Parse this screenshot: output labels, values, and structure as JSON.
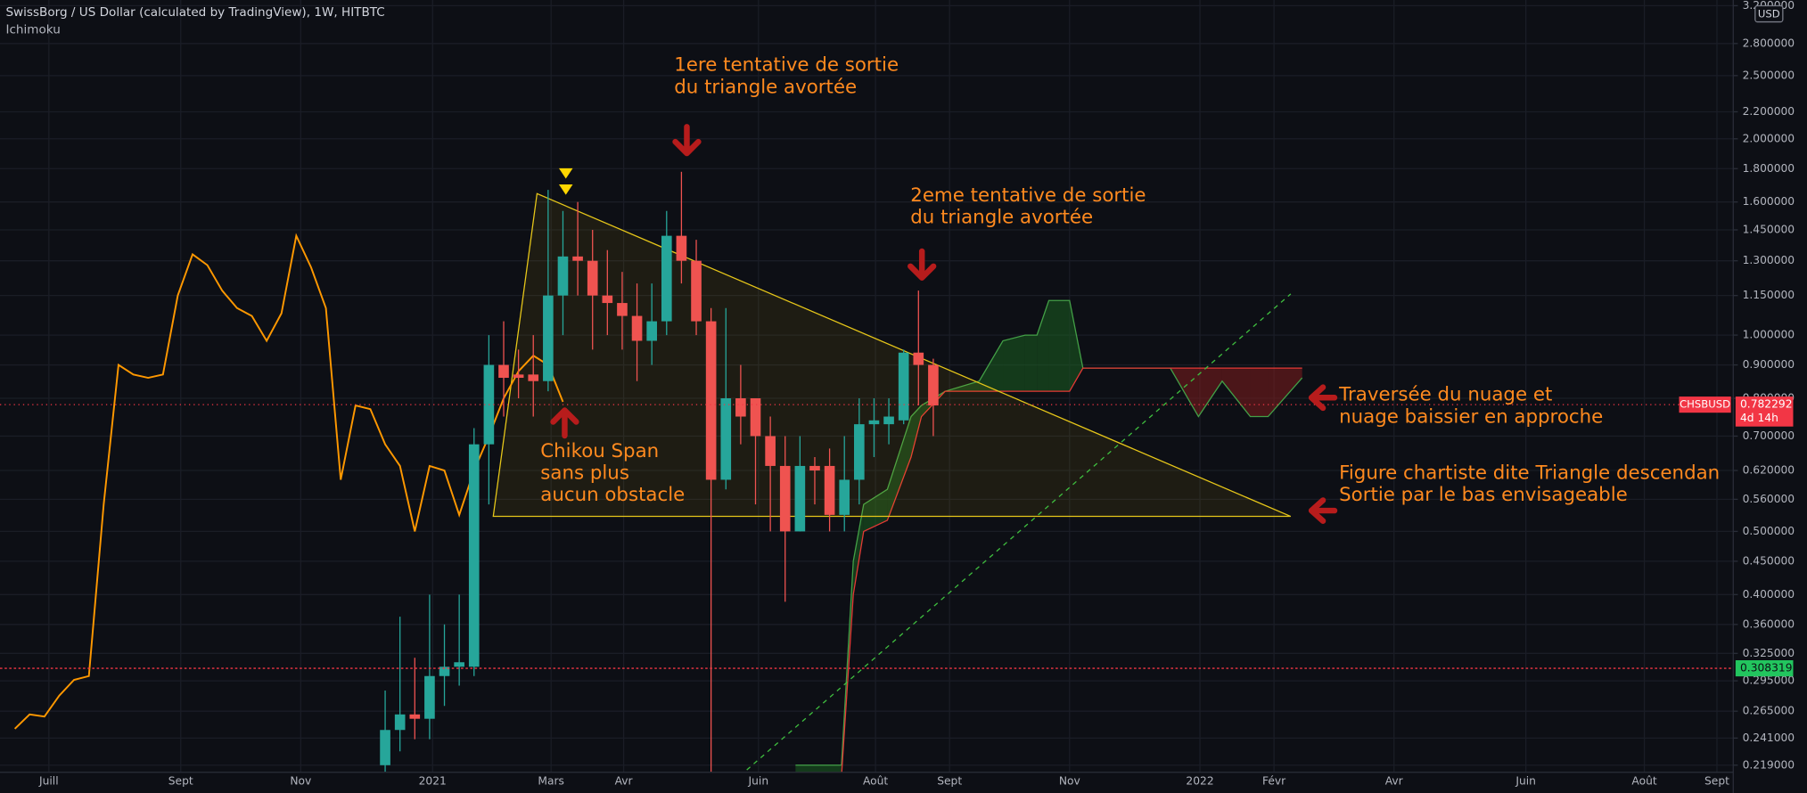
{
  "chart_data": {
    "type": "candlestick",
    "title": "SwissBorg / US Dollar (calculated by TradingView), 1W, HITBTC",
    "subtitle": "Ichimoku",
    "currency": "USD",
    "log_scale": true,
    "grid": true,
    "xlim": [
      0,
      117
    ],
    "xticks": [
      {
        "value": 3.3,
        "label": "Juill"
      },
      {
        "value": 12.2,
        "label": "Sept"
      },
      {
        "value": 20.3,
        "label": "Nov"
      },
      {
        "value": 29.2,
        "label": "2021"
      },
      {
        "value": 37.2,
        "label": "Mars"
      },
      {
        "value": 42.1,
        "label": "Avr"
      },
      {
        "value": 51.2,
        "label": "Juin"
      },
      {
        "value": 59.1,
        "label": "Août"
      },
      {
        "value": 64.1,
        "label": "Sept"
      },
      {
        "value": 72.2,
        "label": "Nov"
      },
      {
        "value": 81.0,
        "label": "2022"
      },
      {
        "value": 86.0,
        "label": "Févr"
      },
      {
        "value": 94.1,
        "label": "Avr"
      },
      {
        "value": 103.0,
        "label": "Juin"
      },
      {
        "value": 111.0,
        "label": "Août"
      },
      {
        "value": 115.9,
        "label": "Sept"
      }
    ],
    "ylim": [
      0.2136,
      3.265
    ],
    "yticks": [
      {
        "value": 0.219,
        "label": "0.219000"
      },
      {
        "value": 0.241,
        "label": "0.241000"
      },
      {
        "value": 0.265,
        "label": "0.265000"
      },
      {
        "value": 0.295,
        "label": "0.295000"
      },
      {
        "value": 0.325,
        "label": "0.325000"
      },
      {
        "value": 0.36,
        "label": "0.360000"
      },
      {
        "value": 0.4,
        "label": "0.400000"
      },
      {
        "value": 0.45,
        "label": "0.450000"
      },
      {
        "value": 0.5,
        "label": "0.500000"
      },
      {
        "value": 0.56,
        "label": "0.560000"
      },
      {
        "value": 0.62,
        "label": "0.620000"
      },
      {
        "value": 0.7,
        "label": "0.700000"
      },
      {
        "value": 0.8,
        "label": "0.800000"
      },
      {
        "value": 0.9,
        "label": "0.900000"
      },
      {
        "value": 1.0,
        "label": "1.000000"
      },
      {
        "value": 1.15,
        "label": "1.150000"
      },
      {
        "value": 1.3,
        "label": "1.300000"
      },
      {
        "value": 1.45,
        "label": "1.450000"
      },
      {
        "value": 1.6,
        "label": "1.600000"
      },
      {
        "value": 1.8,
        "label": "1.800000"
      },
      {
        "value": 2.0,
        "label": "2.000000"
      },
      {
        "value": 2.2,
        "label": "2.200000"
      },
      {
        "value": 2.5,
        "label": "2.500000"
      },
      {
        "value": 2.8,
        "label": "2.800000"
      },
      {
        "value": 3.2,
        "label": "3.200000"
      }
    ],
    "candles": {
      "up_color": "#26a69a",
      "down_color": "#ef5350",
      "x": [
        26,
        27,
        28,
        29,
        30,
        31,
        32,
        33,
        34,
        35,
        36,
        37,
        38,
        39,
        40,
        41,
        42,
        43,
        44,
        45,
        46,
        47,
        48,
        49,
        50,
        51,
        52,
        53,
        54,
        55,
        56,
        57,
        58,
        59,
        60,
        61,
        62,
        63
      ],
      "open": [
        0.219,
        0.248,
        0.262,
        0.258,
        0.3,
        0.31,
        0.31,
        0.68,
        0.9,
        0.87,
        0.87,
        0.85,
        1.15,
        1.32,
        1.3,
        1.15,
        1.12,
        1.07,
        0.98,
        1.05,
        1.42,
        1.3,
        1.05,
        0.6,
        0.8,
        0.8,
        0.7,
        0.63,
        0.5,
        0.63,
        0.63,
        0.53,
        0.6,
        0.73,
        0.73,
        0.74,
        0.94,
        0.9
      ],
      "high": [
        0.285,
        0.37,
        0.32,
        0.4,
        0.36,
        0.4,
        0.72,
        1.0,
        1.05,
        0.95,
        1.0,
        1.67,
        1.55,
        1.6,
        1.45,
        1.35,
        1.25,
        1.2,
        1.2,
        1.55,
        1.78,
        1.4,
        1.1,
        1.1,
        0.9,
        0.8,
        0.75,
        0.7,
        0.7,
        0.65,
        0.67,
        0.7,
        0.8,
        0.8,
        0.8,
        0.95,
        1.17,
        0.92
      ],
      "low": [
        0.214,
        0.23,
        0.24,
        0.24,
        0.27,
        0.29,
        0.3,
        0.55,
        0.75,
        0.8,
        0.75,
        0.82,
        1.0,
        1.15,
        0.95,
        1.0,
        0.95,
        0.85,
        0.9,
        1.0,
        1.2,
        1.0,
        0.214,
        0.58,
        0.68,
        0.55,
        0.5,
        0.39,
        0.5,
        0.55,
        0.5,
        0.5,
        0.55,
        0.65,
        0.68,
        0.73,
        0.78,
        0.7
      ],
      "close": [
        0.248,
        0.262,
        0.258,
        0.3,
        0.31,
        0.315,
        0.68,
        0.9,
        0.86,
        0.86,
        0.85,
        1.15,
        1.32,
        1.3,
        1.15,
        1.12,
        1.07,
        0.98,
        1.05,
        1.42,
        1.3,
        1.05,
        0.6,
        0.8,
        0.75,
        0.7,
        0.63,
        0.5,
        0.63,
        0.62,
        0.53,
        0.6,
        0.73,
        0.74,
        0.75,
        0.94,
        0.9,
        0.78
      ]
    },
    "chikou": {
      "color": "#ff9800",
      "x": [
        1,
        2,
        3,
        4,
        5,
        6,
        7,
        8,
        9,
        10,
        11,
        12,
        13,
        14,
        15,
        16,
        17,
        18,
        19,
        20,
        21,
        22,
        23,
        24,
        25,
        26,
        27,
        28,
        29,
        30,
        31,
        32,
        33,
        34,
        35,
        36,
        37,
        38
      ],
      "values": [
        0.249,
        0.262,
        0.26,
        0.28,
        0.296,
        0.3,
        0.55,
        0.9,
        0.87,
        0.86,
        0.87,
        1.15,
        1.33,
        1.28,
        1.17,
        1.1,
        1.07,
        0.98,
        1.08,
        1.42,
        1.27,
        1.1,
        0.6,
        0.78,
        0.77,
        0.68,
        0.63,
        0.5,
        0.63,
        0.62,
        0.53,
        0.62,
        0.7,
        0.8,
        0.88,
        0.93,
        0.9,
        0.79
      ]
    },
    "cloud": {
      "up_color": "#1b5e20",
      "down_color": "#7f1d1d",
      "line_a_color": "#43a047",
      "line_b_color": "#e53935",
      "x": [
        53.7,
        56.8,
        57.6,
        58.3,
        59.9,
        61.5,
        62.2,
        63.8,
        66.1,
        67.7,
        69.2,
        70.0,
        70.8,
        72.2,
        73.1,
        79.0,
        80.9,
        82.5,
        84.4,
        85.6,
        87.9
      ],
      "span_a": [
        0.219,
        0.219,
        0.45,
        0.55,
        0.58,
        0.75,
        0.78,
        0.82,
        0.85,
        0.98,
        1.0,
        1.0,
        1.13,
        1.13,
        0.89,
        0.89,
        0.75,
        0.85,
        0.75,
        0.75,
        0.86
      ],
      "span_b": [
        0.21,
        0.21,
        0.4,
        0.5,
        0.52,
        0.65,
        0.75,
        0.82,
        0.82,
        0.82,
        0.82,
        0.82,
        0.82,
        0.82,
        0.89,
        0.89,
        0.89,
        0.89,
        0.89,
        0.89,
        0.89
      ]
    },
    "price_line": {
      "value": 0.308319,
      "color": "#f23645",
      "badge_color": "#22c55e"
    },
    "last_price": {
      "symbol": "CHSBUSD",
      "value": 0.782292,
      "countdown": "4d 14h",
      "color": "#f23645"
    },
    "annotations": [
      {
        "lines": [
          "1ere tentative de sortie",
          "du triangle avortée"
        ]
      },
      {
        "lines": [
          "2eme tentative de sortie",
          "du triangle avortée"
        ]
      },
      {
        "lines": [
          "Chikou Span",
          "sans plus",
          "aucun obstacle"
        ]
      },
      {
        "lines": [
          "Traversée du nuage et",
          "nuage baissier en approche"
        ]
      },
      {
        "lines": [
          "Figure chartiste dite Triangle descendan",
          "Sortie par le bas envisageable"
        ]
      }
    ]
  }
}
